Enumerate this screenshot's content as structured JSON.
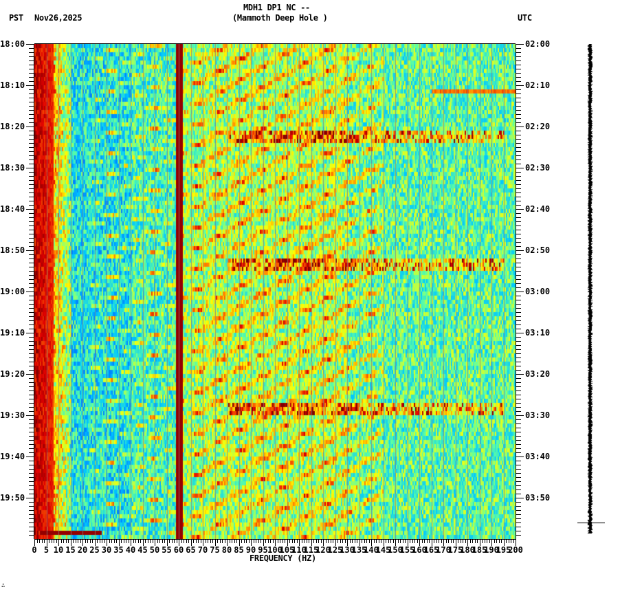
{
  "header": {
    "station_line": "MDH1 DP1 NC --",
    "location_line": "(Mammoth Deep Hole )",
    "left_tz": "PST",
    "date": "Nov26,2025",
    "right_tz": "UTC"
  },
  "footer": {
    "mark": "∴"
  },
  "chart_data": {
    "type": "heatmap",
    "title": "MDH1 DP1 NC -- (Mammoth Deep Hole )",
    "subtitle": "Nov26,2025",
    "xlabel": "FREQUENCY (HZ)",
    "ylabel_left": "PST",
    "ylabel_right": "UTC",
    "xlim": [
      0,
      200
    ],
    "x_ticks": [
      0,
      5,
      10,
      15,
      20,
      25,
      30,
      35,
      40,
      45,
      50,
      55,
      60,
      65,
      70,
      75,
      80,
      85,
      90,
      95,
      100,
      105,
      110,
      115,
      120,
      125,
      130,
      135,
      140,
      145,
      150,
      155,
      160,
      165,
      170,
      175,
      180,
      185,
      190,
      195,
      200
    ],
    "x_minor_tick_step": 1,
    "y_ticks_left": [
      "18:00",
      "18:10",
      "18:20",
      "18:30",
      "18:40",
      "18:50",
      "19:00",
      "19:10",
      "19:20",
      "19:30",
      "19:40",
      "19:50"
    ],
    "y_ticks_right": [
      "02:00",
      "02:10",
      "02:20",
      "02:30",
      "02:40",
      "02:50",
      "03:00",
      "03:10",
      "03:20",
      "03:30",
      "03:40",
      "03:50"
    ],
    "y_minor_tick_minutes": 1,
    "time_span_minutes": 120,
    "colormap": "jet",
    "colormap_colors": [
      "#0000a0",
      "#0050ff",
      "#00c8ff",
      "#60ffa0",
      "#ffff00",
      "#ff8000",
      "#e00000",
      "#800000"
    ],
    "features": {
      "persistent_line_hz": 60,
      "low_freq_energy_hz": [
        0,
        8
      ],
      "chirp_sweeps_per_10min": 2,
      "broadband_events_pst": [
        "18:22",
        "18:53",
        "19:28"
      ],
      "horizontal_event_pst": "19:58",
      "horizontal_event_band_hz": [
        2,
        28
      ],
      "narrow_band_event_pst": "18:11",
      "narrow_band_event_range_hz": [
        165,
        200
      ]
    },
    "legend": null,
    "grid": false
  },
  "trace": {
    "label": "seismogram-trace",
    "marker_y_minute": 116
  }
}
